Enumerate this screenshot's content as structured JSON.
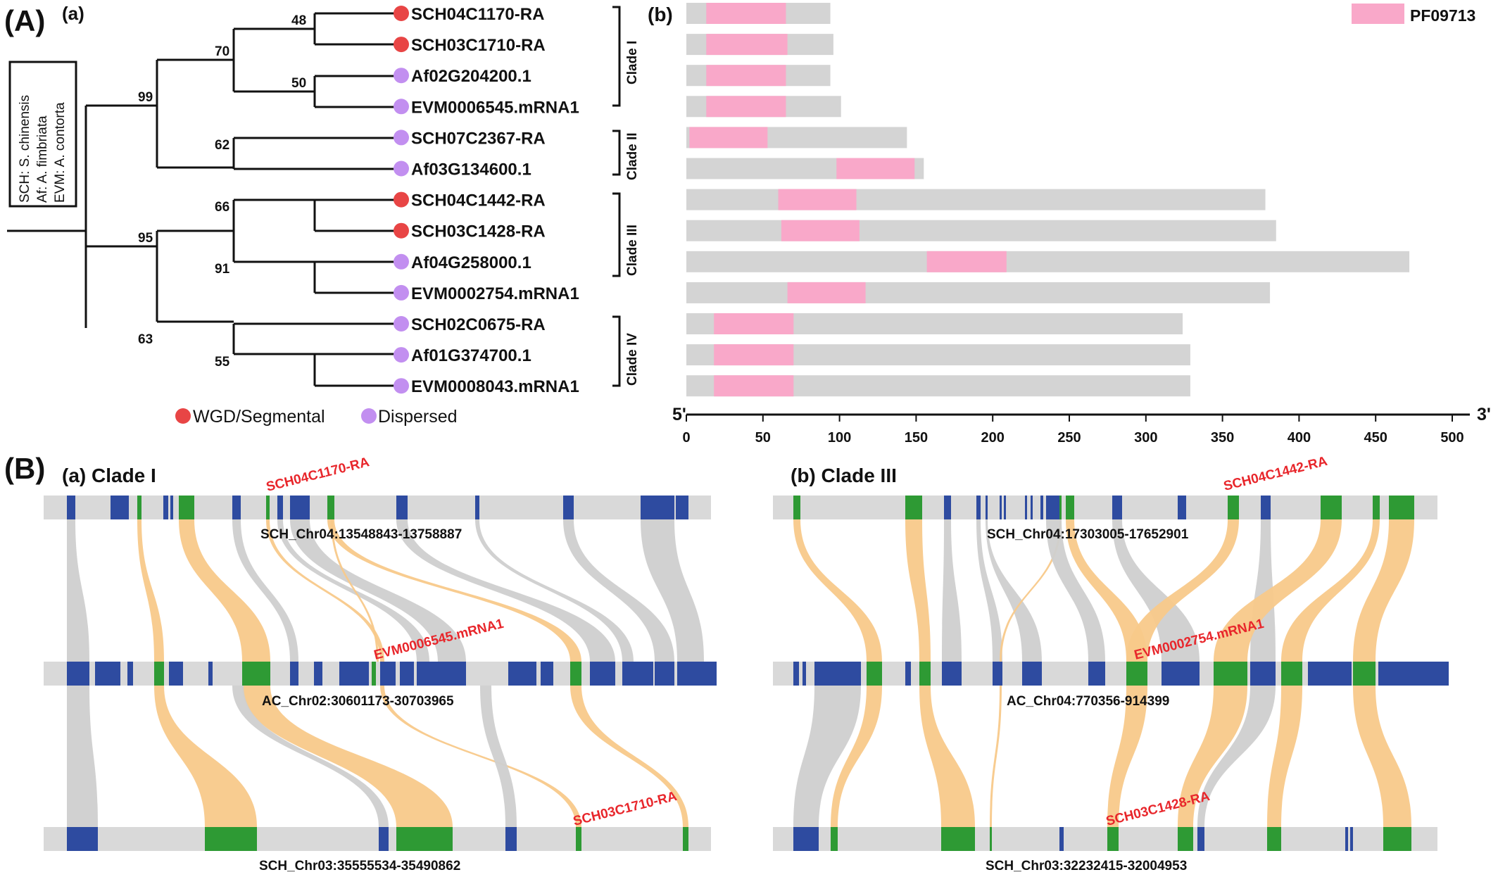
{
  "panel_A": {
    "label": "(A)",
    "sub_a": "(a)",
    "sub_b": "(b)",
    "species_key": {
      "lines": [
        "SCH: S. chinensis",
        "Af: A. fimbriata",
        "EVM: A. contorta"
      ]
    },
    "bootstrap": [
      "48",
      "70",
      "50",
      "99",
      "62",
      "66",
      "95",
      "91",
      "63",
      "55"
    ],
    "legend_dup": {
      "wgd_label": "WGD/Segmental",
      "wgd_color": "#e84545",
      "disp_label": "Dispersed",
      "disp_color": "#c28ff0"
    },
    "clades": [
      "Clade I",
      "Clade II",
      "Clade III",
      "Clade IV"
    ],
    "domain_legend": {
      "label": "PF09713",
      "color": "#f9a8c9"
    },
    "axis": {
      "start_label": "5'",
      "end_label": "3'",
      "ticks": [
        "0",
        "50",
        "100",
        "150",
        "200",
        "250",
        "300",
        "350",
        "400",
        "450",
        "500"
      ],
      "min": 0,
      "max": 500
    }
  },
  "chart_data": {
    "type": "bar",
    "categories": [
      "SCH04C1170-RA",
      "SCH03C1710-RA",
      "Af02G204200.1",
      "EVM0006545.mRNA1",
      "SCH07C2367-RA",
      "Af03G134600.1",
      "SCH04C1442-RA",
      "SCH03C1428-RA",
      "Af04G258000.1",
      "EVM0002754.mRNA1",
      "SCH02C0675-RA",
      "Af01G374700.1",
      "EVM0008043.mRNA1"
    ],
    "duplication_type": [
      "WGD/Segmental",
      "WGD/Segmental",
      "Dispersed",
      "Dispersed",
      "Dispersed",
      "Dispersed",
      "WGD/Segmental",
      "WGD/Segmental",
      "Dispersed",
      "Dispersed",
      "Dispersed",
      "Dispersed",
      "Dispersed"
    ],
    "protein_length": [
      94,
      96,
      94,
      101,
      144,
      155,
      378,
      385,
      472,
      381,
      324,
      329,
      329
    ],
    "domain_start": [
      13,
      13,
      13,
      13,
      2,
      98,
      60,
      62,
      157,
      66,
      18,
      18,
      18
    ],
    "domain_end": [
      65,
      66,
      65,
      65,
      53,
      149,
      111,
      113,
      209,
      117,
      70,
      70,
      70
    ],
    "domain_name": "PF09713",
    "xlim": [
      0,
      500
    ]
  },
  "panel_B": {
    "label": "(B)",
    "clade_I": {
      "title": "(a) Clade I",
      "tracks": [
        "SCH_Chr04:13548843-13758887",
        "AC_Chr02:30601173-30703965",
        "SCH_Chr03:35555534-35490862"
      ],
      "genes": [
        "SCH04C1170-RA",
        "EVM0006545.mRNA1",
        "SCH03C1710-RA"
      ]
    },
    "clade_III": {
      "title": "(b) Clade III",
      "tracks": [
        "SCH_Chr04:17303005-17652901",
        "AC_Chr04:770356-914399",
        "SCH_Chr03:32232415-32004953"
      ],
      "genes": [
        "SCH04C1442-RA",
        "EVM0002754.mRNA1",
        "SCH03C1428-RA"
      ]
    },
    "colors": {
      "gene": "#2e4ba0",
      "homolog": "#2e9a34",
      "track": "#d9d9d9",
      "link_grey": "#cfcfcf",
      "link_orange": "#f8c98a",
      "gene_label": "#e8262b"
    }
  }
}
